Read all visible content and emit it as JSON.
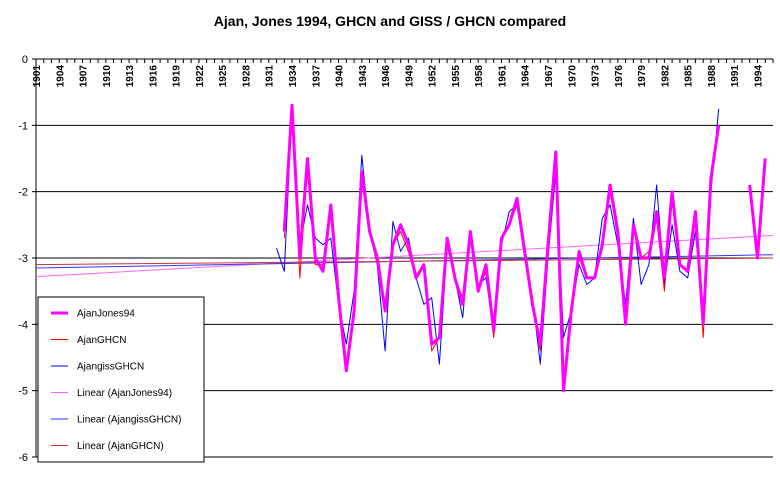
{
  "chart_data": {
    "type": "line",
    "title": "Ajan,  Jones 1994, GHCN and GISS / GHCN compared",
    "xlabel": "",
    "ylabel": "",
    "ylim": [
      -6,
      0
    ],
    "yticks": [
      0,
      -1,
      -2,
      -3,
      -4,
      -5,
      -6
    ],
    "xlim": [
      1901,
      1996
    ],
    "xticks": [
      1901,
      1904,
      1907,
      1910,
      1913,
      1916,
      1919,
      1922,
      1925,
      1928,
      1931,
      1934,
      1937,
      1940,
      1943,
      1946,
      1949,
      1952,
      1955,
      1958,
      1961,
      1964,
      1967,
      1970,
      1973,
      1976,
      1979,
      1982,
      1985,
      1988,
      1991,
      1994
    ],
    "grid": "horizontal",
    "legend_position": "bottom-left",
    "series": [
      {
        "name": "AjanJones94",
        "color": "#ff00ff",
        "x": [
          1933,
          1934,
          1935,
          1936,
          1937,
          1938,
          1939,
          1940,
          1941,
          1942,
          1943,
          1944,
          1945,
          1946,
          1947,
          1948,
          1949,
          1950,
          1951,
          1952,
          1953,
          1954,
          1955,
          1956,
          1957,
          1958,
          1959,
          1960,
          1961,
          1962,
          1963,
          1964,
          1965,
          1966,
          1967,
          1968,
          1969,
          1970,
          1971,
          1972,
          1973,
          1974,
          1975,
          1976,
          1977,
          1978,
          1979,
          1980,
          1981,
          1982,
          1983,
          1984,
          1985,
          1986,
          1987,
          1988,
          1989,
          1990,
          1991,
          1992,
          1993,
          1994,
          1995
        ],
        "y": [
          -2.6,
          -0.7,
          -3.0,
          -1.5,
          -3.0,
          -3.2,
          -2.2,
          -3.6,
          -4.7,
          -3.8,
          -1.7,
          -2.6,
          -3.0,
          -3.8,
          -2.8,
          -2.5,
          -2.8,
          -3.3,
          -3.1,
          -4.3,
          -4.2,
          -2.7,
          -3.3,
          -3.7,
          -2.6,
          -3.5,
          -3.1,
          -4.1,
          -2.7,
          -2.5,
          -2.1,
          -2.9,
          -3.7,
          -4.3,
          -2.8,
          -1.4,
          -5.0,
          -3.8,
          -2.9,
          -3.3,
          -3.3,
          -2.8,
          -1.9,
          -2.6,
          -4.0,
          -2.5,
          -3.0,
          -3.0,
          -2.3,
          -3.3,
          -2.0,
          -3.1,
          -3.2,
          -2.3,
          -4.0,
          -1.8,
          -1.0,
          null,
          null,
          null,
          -1.9,
          -3.0,
          -1.5
        ]
      },
      {
        "name": "AjanGHCN",
        "color": "#ff0000",
        "x": [
          1933,
          1934,
          1935,
          1936,
          1937,
          1938,
          1939,
          1940,
          1941,
          1942,
          1943,
          1944,
          1945,
          1946,
          1947,
          1948,
          1949,
          1950,
          1951,
          1952,
          1953,
          1954,
          1955,
          1956,
          1957,
          1958,
          1959,
          1960,
          1961,
          1962,
          1963,
          1964,
          1965,
          1966,
          1967,
          1968,
          1969,
          1970,
          1971,
          1972,
          1973,
          1974,
          1975,
          1976,
          1977,
          1978,
          1979,
          1980,
          1981,
          1982,
          1983,
          1984,
          1985,
          1986,
          1987,
          1988,
          1989
        ],
        "y": [
          -2.7,
          -0.8,
          -3.3,
          -1.6,
          -3.1,
          -3.1,
          -2.3,
          -3.7,
          -4.7,
          -3.7,
          -1.8,
          -2.6,
          -3.1,
          -3.8,
          -2.8,
          -2.6,
          -2.9,
          -3.3,
          -3.1,
          -4.4,
          -4.2,
          -2.8,
          -3.3,
          -3.6,
          -2.6,
          -3.5,
          -3.2,
          -4.2,
          -2.7,
          -2.5,
          -2.2,
          -3.0,
          -3.7,
          -4.4,
          -2.9,
          -1.5,
          -4.9,
          -3.8,
          -3.0,
          -3.3,
          -3.3,
          -2.8,
          -2.0,
          -2.7,
          -4.0,
          -2.5,
          -3.0,
          -2.9,
          -2.4,
          -3.5,
          -2.0,
          -3.1,
          -3.2,
          -2.4,
          -4.2,
          -1.8,
          -1.0
        ]
      },
      {
        "name": "AjangissGHCN",
        "color": "#0000ff",
        "x": [
          1932,
          1933,
          1934,
          1935,
          1936,
          1937,
          1938,
          1939,
          1940,
          1941,
          1942,
          1943,
          1944,
          1945,
          1946,
          1947,
          1948,
          1949,
          1950,
          1951,
          1952,
          1953,
          1954,
          1955,
          1956,
          1957,
          1958,
          1959,
          1960,
          1961,
          1962,
          1963,
          1964,
          1965,
          1966,
          1967,
          1968,
          1969,
          1970,
          1971,
          1972,
          1973,
          1974,
          1975,
          1976,
          1977,
          1978,
          1979,
          1980,
          1981,
          1982,
          1983,
          1984,
          1985,
          1986,
          1987,
          1988,
          1989
        ],
        "y": [
          -2.85,
          -3.2,
          -0.75,
          -2.8,
          -2.2,
          -2.7,
          -2.8,
          -2.7,
          -3.7,
          -4.3,
          -3.5,
          -1.45,
          -2.6,
          -3.1,
          -4.4,
          -2.45,
          -2.9,
          -2.7,
          -3.3,
          -3.7,
          -3.6,
          -4.6,
          -2.8,
          -3.3,
          -3.9,
          -2.65,
          -3.4,
          -3.3,
          -4.1,
          -2.8,
          -2.3,
          -2.2,
          -3.0,
          -3.6,
          -4.6,
          -3.0,
          -1.7,
          -4.2,
          -3.8,
          -3.1,
          -3.4,
          -3.3,
          -2.4,
          -2.2,
          -2.8,
          -3.7,
          -2.4,
          -3.4,
          -3.1,
          -1.9,
          -3.4,
          -2.5,
          -3.2,
          -3.3,
          -2.6,
          -3.9,
          -2.0,
          -0.75
        ]
      },
      {
        "name": "Linear (AjanJones94)",
        "color": "#ff66ff",
        "x": [
          1901,
          1996
        ],
        "y": [
          -3.28,
          -2.66
        ]
      },
      {
        "name": "Linear (AjangissGHCN)",
        "color": "#3333ff",
        "x": [
          1901,
          1996
        ],
        "y": [
          -3.15,
          -2.95
        ]
      },
      {
        "name": "Linear (AjanGHCN)",
        "color": "#cc3333",
        "x": [
          1901,
          1996
        ],
        "y": [
          -3.1,
          -3.0
        ]
      }
    ]
  }
}
